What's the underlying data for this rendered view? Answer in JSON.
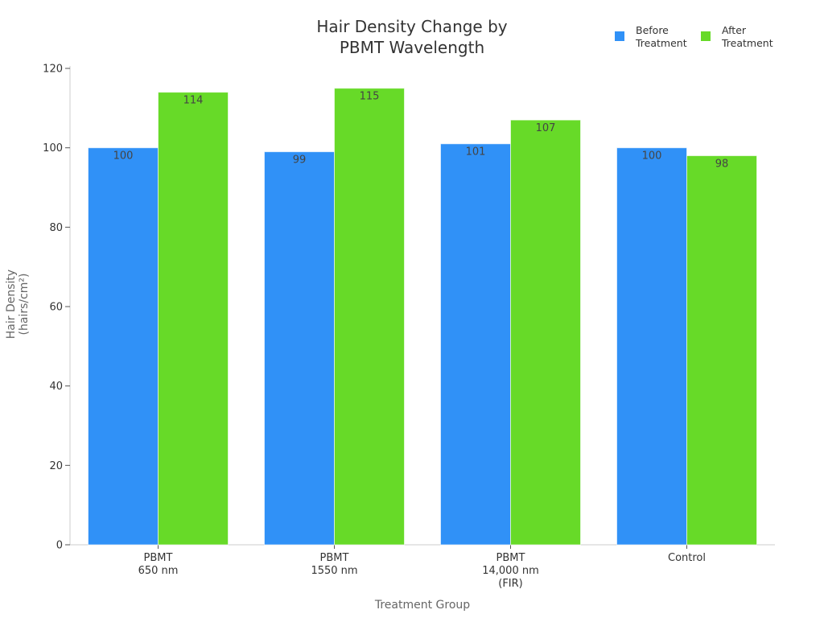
{
  "chart_data": {
    "type": "bar",
    "title": [
      "Hair Density Change by",
      "PBMT Wavelength"
    ],
    "xlabel": "Treatment Group",
    "ylabel": [
      "Hair Density",
      "(hairs/cm²)"
    ],
    "ylim": [
      0,
      120
    ],
    "yticks": [
      0,
      20,
      40,
      60,
      80,
      100,
      120
    ],
    "grid": false,
    "legend_position": "top-right",
    "categories": [
      [
        "PBMT",
        "650 nm"
      ],
      [
        "PBMT",
        "1550 nm"
      ],
      [
        "PBMT",
        "14,000 nm",
        "(FIR)"
      ],
      [
        "Control"
      ]
    ],
    "series": [
      {
        "name": [
          "Before",
          "Treatment"
        ],
        "color": "#3091f7",
        "values": [
          100,
          99,
          101,
          100
        ]
      },
      {
        "name": [
          "After",
          "Treatment"
        ],
        "color": "#67da28",
        "values": [
          114,
          115,
          107,
          98
        ]
      }
    ]
  }
}
